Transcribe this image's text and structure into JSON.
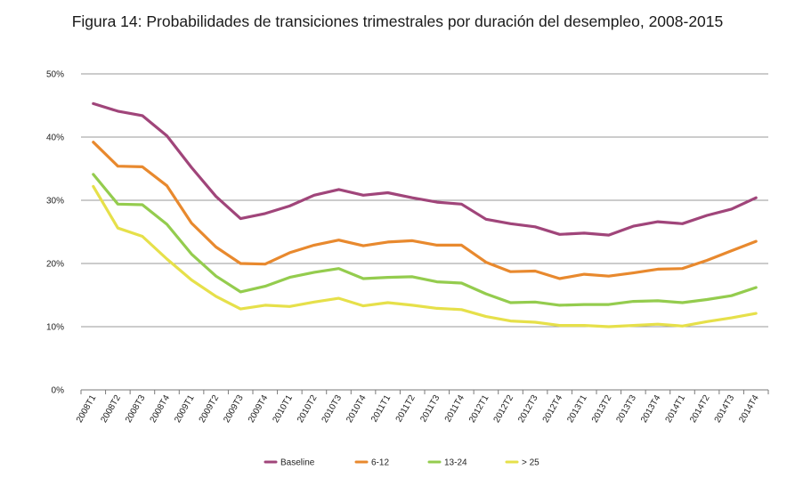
{
  "chart_data": {
    "type": "line",
    "title": "Figura 14: Probabilidades de transiciones trimestrales por duración del desempleo, 2008-2015",
    "xlabel": "",
    "ylabel": "",
    "ylim": [
      0,
      50
    ],
    "yticks": [
      "0%",
      "10%",
      "20%",
      "30%",
      "40%",
      "50%"
    ],
    "grid": true,
    "legend_position": "bottom",
    "categories": [
      "2008T1",
      "2008T2",
      "2008T3",
      "2008T4",
      "2009T1",
      "2009T2",
      "2009T3",
      "2009T4",
      "2010T1",
      "2010T2",
      "2010T3",
      "2010T4",
      "2011T1",
      "2011T2",
      "2011T3",
      "2011T4",
      "2012T1",
      "2012T2",
      "2012T3",
      "2012T4",
      "2013T1",
      "2013T2",
      "2013T3",
      "2013T4",
      "2014T1",
      "2014T2",
      "2014T3",
      "2014T4"
    ],
    "series": [
      {
        "name": "Baseline",
        "color": "#a0457a",
        "values": [
          45.3,
          44.1,
          43.4,
          40.2,
          35.2,
          30.6,
          27.1,
          27.9,
          29.1,
          30.8,
          31.7,
          30.8,
          31.2,
          30.4,
          29.7,
          29.4,
          27.0,
          26.3,
          25.8,
          24.6,
          24.8,
          24.5,
          25.9,
          26.6,
          26.3,
          27.6,
          28.6,
          30.4
        ]
      },
      {
        "name": "6-12",
        "color": "#e8892e",
        "values": [
          39.2,
          35.4,
          35.3,
          32.3,
          26.4,
          22.6,
          20.0,
          19.9,
          21.7,
          22.9,
          23.7,
          22.8,
          23.4,
          23.6,
          22.9,
          22.9,
          20.2,
          18.7,
          18.8,
          17.6,
          18.3,
          18.0,
          18.5,
          19.1,
          19.2,
          20.5,
          22.0,
          23.5
        ]
      },
      {
        "name": "13-24",
        "color": "#94cc4e",
        "values": [
          34.1,
          29.4,
          29.3,
          26.2,
          21.5,
          18.0,
          15.5,
          16.4,
          17.8,
          18.6,
          19.2,
          17.6,
          17.8,
          17.9,
          17.1,
          16.9,
          15.2,
          13.8,
          13.9,
          13.4,
          13.5,
          13.5,
          14.0,
          14.1,
          13.8,
          14.3,
          14.9,
          16.2
        ]
      },
      {
        "name": "> 25",
        "color": "#e6e04a",
        "values": [
          32.2,
          25.6,
          24.3,
          20.7,
          17.4,
          14.8,
          12.8,
          13.4,
          13.2,
          13.9,
          14.5,
          13.3,
          13.8,
          13.4,
          12.9,
          12.7,
          11.6,
          10.9,
          10.7,
          10.2,
          10.2,
          10.0,
          10.2,
          10.4,
          10.1,
          10.8,
          11.4,
          12.1
        ]
      }
    ]
  }
}
